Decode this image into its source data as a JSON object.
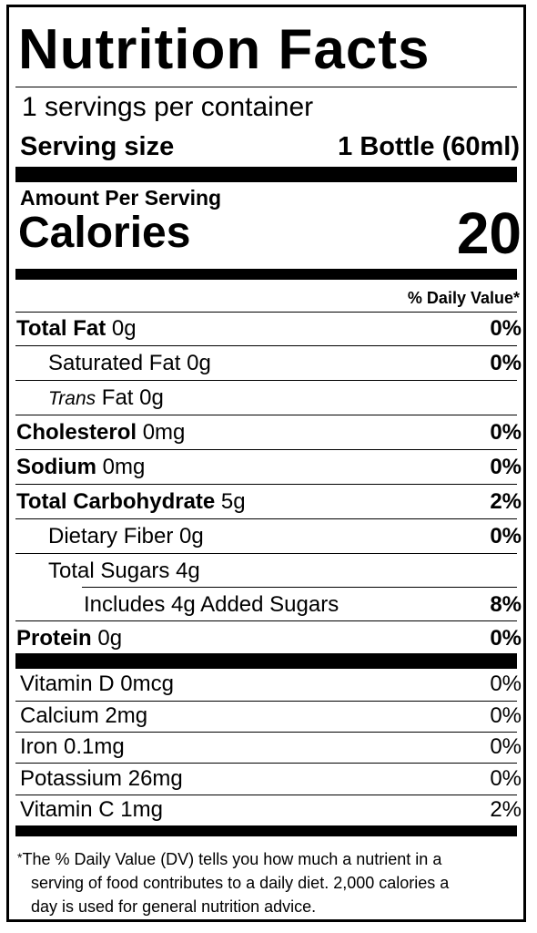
{
  "title": "Nutrition Facts",
  "servings_per_container": "1 servings per container",
  "serving_size": {
    "label": "Serving size",
    "value": "1 Bottle (60ml)"
  },
  "amount_per_serving": "Amount Per Serving",
  "calories": {
    "label": "Calories",
    "value": "20"
  },
  "daily_value_header": "% Daily Value*",
  "nutrients": [
    {
      "name": "Total Fat",
      "amount": "0g",
      "dv": "0%"
    },
    {
      "name": "Saturated Fat",
      "amount": "0g",
      "dv": "0%"
    },
    {
      "name_italic": "Trans",
      "name": "Fat",
      "amount": "0g",
      "dv": ""
    },
    {
      "name": "Cholesterol",
      "amount": "0mg",
      "dv": "0%"
    },
    {
      "name": "Sodium",
      "amount": "0mg",
      "dv": "0%"
    },
    {
      "name": "Total Carbohydrate",
      "amount": "5g",
      "dv": "2%"
    },
    {
      "name": "Dietary Fiber",
      "amount": "0g",
      "dv": "0%"
    },
    {
      "name": "Total Sugars",
      "amount": "4g",
      "dv": ""
    },
    {
      "name": "Includes 4g Added Sugars",
      "amount": "",
      "dv": "8%"
    },
    {
      "name": "Protein",
      "amount": "0g",
      "dv": "0%"
    }
  ],
  "vitamins": [
    {
      "name": "Vitamin D",
      "amount": "0mcg",
      "dv": "0%"
    },
    {
      "name": "Calcium",
      "amount": "2mg",
      "dv": "0%"
    },
    {
      "name": "Iron",
      "amount": "0.1mg",
      "dv": "0%"
    },
    {
      "name": "Potassium",
      "amount": "26mg",
      "dv": "0%"
    },
    {
      "name": "Vitamin C",
      "amount": "1mg",
      "dv": "2%"
    }
  ],
  "footnote": {
    "star": "*",
    "line1": "The % Daily Value (DV) tells you how much a nutrient in a",
    "line2": "serving of food contributes to a daily diet. 2,000 calories a",
    "line3": "day is used for general nutrition advice."
  }
}
